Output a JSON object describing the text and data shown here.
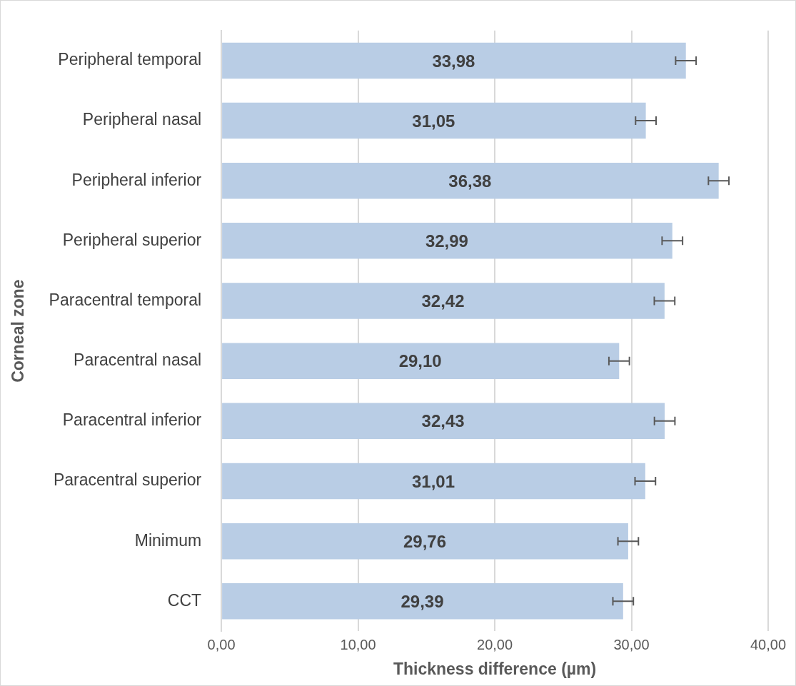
{
  "chart_data": {
    "type": "bar",
    "orientation": "horizontal",
    "xlabel": "Thickness difference (µm)",
    "ylabel": "Corneal zone",
    "categories": [
      "Peripheral temporal",
      "Peripheral nasal",
      "Peripheral inferior",
      "Peripheral superior",
      "Paracentral temporal",
      "Paracentral nasal",
      "Paracentral inferior",
      "Paracentral superior",
      "Minimum",
      "CCT"
    ],
    "values": [
      33.98,
      31.05,
      36.38,
      32.99,
      32.42,
      29.1,
      32.43,
      31.01,
      29.76,
      29.39
    ],
    "errors": [
      0.75,
      0.75,
      0.75,
      0.75,
      0.75,
      0.75,
      0.75,
      0.75,
      0.75,
      0.75
    ],
    "value_labels": [
      "33,98",
      "31,05",
      "36,38",
      "32,99",
      "32,42",
      "29,10",
      "32,43",
      "31,01",
      "29,76",
      "29,39"
    ],
    "color": "#b9cde5",
    "xlim": [
      0,
      40
    ],
    "xticks": [
      {
        "value": 0,
        "label": "0,00"
      },
      {
        "value": 10,
        "label": "10,00"
      },
      {
        "value": 20,
        "label": "20,00"
      },
      {
        "value": 30,
        "label": "30,00"
      },
      {
        "value": 40,
        "label": "40,00"
      }
    ],
    "grid": "x",
    "legend": false
  }
}
